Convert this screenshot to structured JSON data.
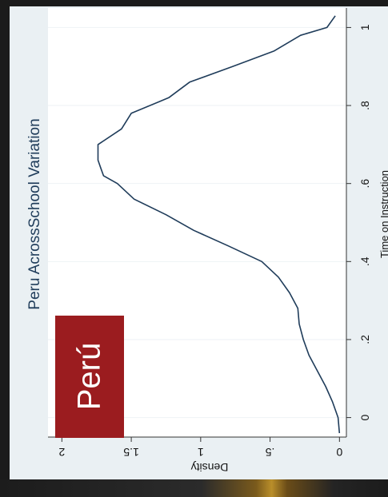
{
  "badge": {
    "label": "Perú",
    "color": "#9b1c1f"
  },
  "chart_data": {
    "type": "line",
    "title": "Peru AcrossSchool Variation",
    "xlabel": "Time on Instruction",
    "ylabel": "Density",
    "xlim": [
      -0.05,
      1.05
    ],
    "ylim": [
      -0.05,
      2.1
    ],
    "x_ticks": [
      0,
      0.2,
      0.4,
      0.6,
      0.8,
      1
    ],
    "x_tick_labels": [
      "0",
      ".2",
      ".4",
      ".6",
      ".8",
      "1"
    ],
    "y_ticks": [
      0,
      0.5,
      1,
      1.5,
      2
    ],
    "y_tick_labels": [
      "0",
      ".5",
      "1",
      "1.5",
      "2"
    ],
    "grid": true,
    "line_color": "#1f3c5a",
    "series": [
      {
        "x": [
          -0.04,
          0.0,
          0.04,
          0.08,
          0.12,
          0.16,
          0.2,
          0.24,
          0.28,
          0.32,
          0.36,
          0.4,
          0.44,
          0.48,
          0.52,
          0.56,
          0.6,
          0.62,
          0.64,
          0.66,
          0.7,
          0.74,
          0.78,
          0.82,
          0.86,
          0.9,
          0.94,
          0.98,
          1.0,
          1.03
        ],
        "values": [
          0.0,
          0.01,
          0.05,
          0.1,
          0.16,
          0.22,
          0.26,
          0.29,
          0.3,
          0.36,
          0.44,
          0.56,
          0.8,
          1.05,
          1.25,
          1.48,
          1.6,
          1.7,
          1.72,
          1.74,
          1.74,
          1.57,
          1.5,
          1.23,
          1.08,
          0.77,
          0.47,
          0.28,
          0.09,
          0.03
        ]
      }
    ]
  }
}
